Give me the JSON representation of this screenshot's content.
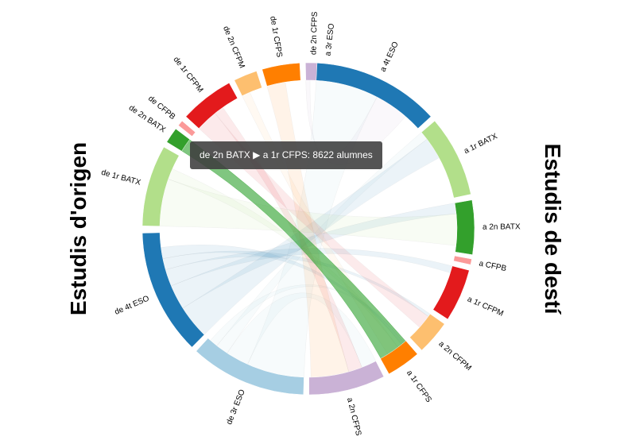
{
  "titles": {
    "left": "Estudis d'origen",
    "right": "Estudis de destí"
  },
  "tooltip": {
    "text": "de 2n BATX ▶ a 1r CFPS: 8622 alumnes"
  },
  "highlight": {
    "from": "de 2n BATX",
    "to": "a 1r CFPS",
    "value": 8622,
    "color": "#2ca02c"
  },
  "origins": [
    {
      "label": "de 3r ESO",
      "color": "#a6cee3"
    },
    {
      "label": "de 4t ESO",
      "color": "#1f78b4"
    },
    {
      "label": "de 1r BATX",
      "color": "#b2df8a"
    },
    {
      "label": "de 2n BATX",
      "color": "#33a02c"
    },
    {
      "label": "de CFPB",
      "color": "#fb9a99"
    },
    {
      "label": "de 1r CFPM",
      "color": "#e31a1c"
    },
    {
      "label": "de 2n CFPM",
      "color": "#fdbf6f"
    },
    {
      "label": "de 1r CFPS",
      "color": "#ff7f00"
    },
    {
      "label": "de 2n CFPS",
      "color": "#cab2d6"
    }
  ],
  "destinations": [
    {
      "label": "a 3r ESO",
      "color": "#a6cee3"
    },
    {
      "label": "a 4t ESO",
      "color": "#1f78b4"
    },
    {
      "label": "a 1r BATX",
      "color": "#b2df8a"
    },
    {
      "label": "a 2n BATX",
      "color": "#33a02c"
    },
    {
      "label": "a CFPB",
      "color": "#fb9a99"
    },
    {
      "label": "a 1r CFPM",
      "color": "#e31a1c"
    },
    {
      "label": "a 2n CFPM",
      "color": "#fdbf6f"
    },
    {
      "label": "a 1r CFPS",
      "color": "#ff7f00"
    },
    {
      "label": "a 2n CFPS",
      "color": "#cab2d6"
    }
  ]
}
